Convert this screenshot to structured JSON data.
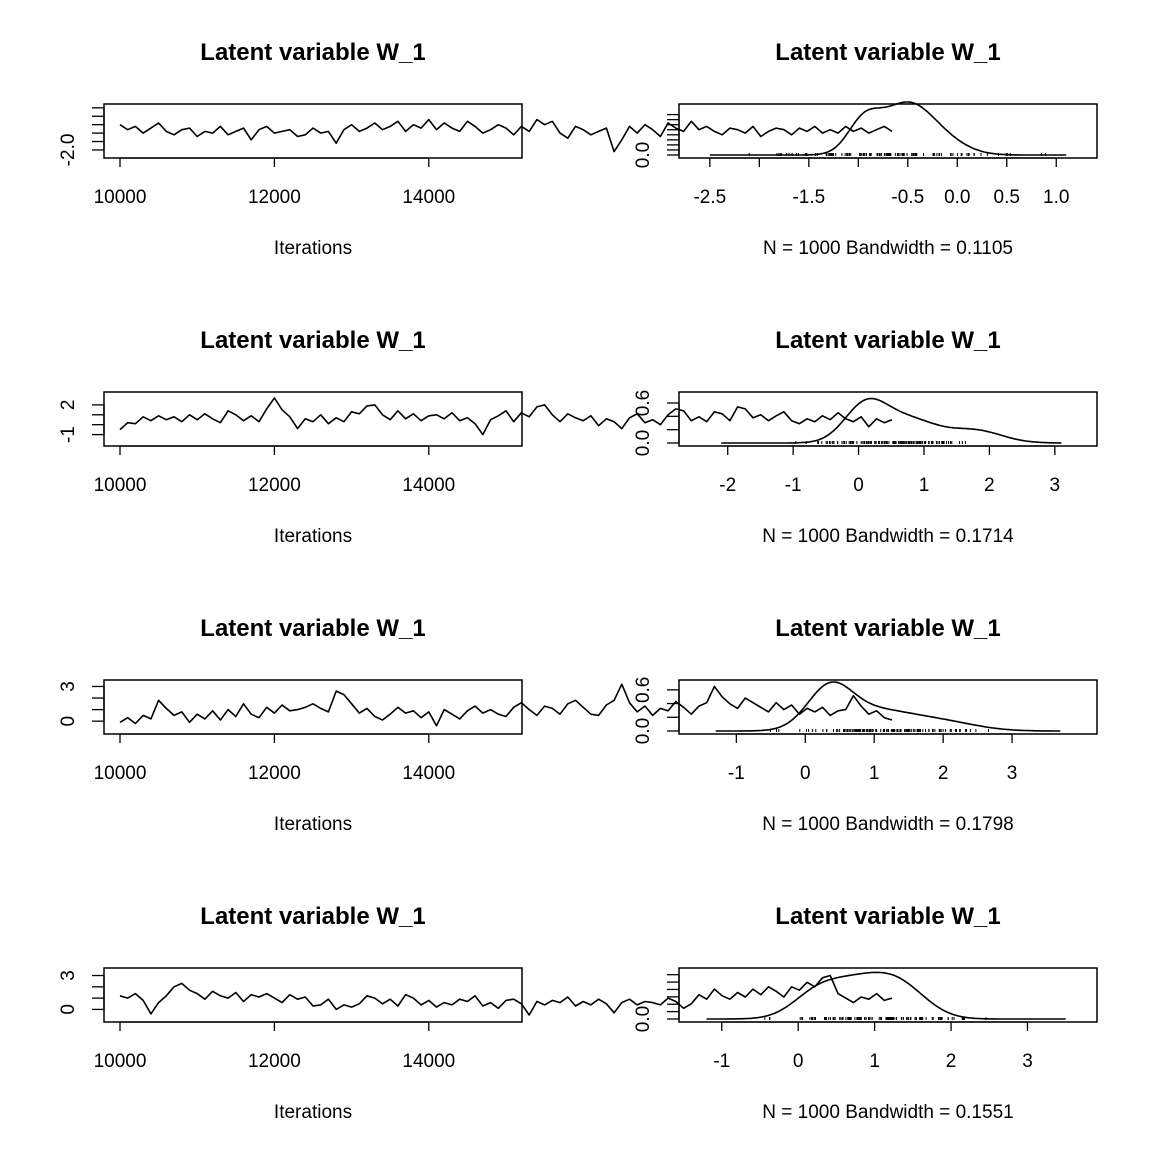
{
  "figure": {
    "background": "#ffffff",
    "line_color": "#000000"
  },
  "chart_data": [
    {
      "type": "line",
      "kind": "trace",
      "title": "Latent variable W_1",
      "xlabel": "Iterations",
      "xlim": [
        10000,
        15000
      ],
      "ylim": [
        -2.3,
        0.55
      ],
      "xticks": [
        10000,
        12000,
        14000
      ],
      "xtick_labels": [
        "10000",
        "12000",
        "14000"
      ],
      "yticks": [
        -2.0,
        -1.5,
        -1.0,
        -0.5,
        0.0,
        0.5
      ],
      "ytick_labels": [
        "-2.0",
        "",
        "",
        "",
        "",
        ""
      ],
      "series": [
        {
          "x_start": 10000,
          "x_step": 100,
          "values": [
            -0.5,
            -0.8,
            -0.6,
            -1.0,
            -0.7,
            -0.4,
            -0.9,
            -1.1,
            -0.8,
            -0.7,
            -1.2,
            -0.9,
            -1.0,
            -0.6,
            -1.1,
            -0.9,
            -0.7,
            -1.4,
            -0.8,
            -0.6,
            -1.0,
            -0.9,
            -0.8,
            -1.2,
            -1.1,
            -0.7,
            -1.0,
            -0.9,
            -1.6,
            -0.8,
            -0.5,
            -0.9,
            -0.7,
            -0.4,
            -0.8,
            -0.6,
            -0.3,
            -0.9,
            -0.5,
            -0.7,
            -0.2,
            -0.8,
            -0.4,
            -0.7,
            -0.9,
            -0.3,
            -0.6,
            -1.0,
            -0.8,
            -0.5,
            -0.7,
            -1.1,
            -0.6,
            -0.9,
            -0.2,
            -0.5,
            -0.3,
            -1.0,
            -1.3,
            -0.6,
            -0.8,
            -1.1,
            -0.9,
            -0.7,
            -2.1,
            -1.4,
            -0.6,
            -1.0,
            -0.5,
            -0.8,
            -1.2,
            -0.4,
            -0.7,
            -0.9,
            -0.3,
            -0.8,
            -0.6,
            -0.9,
            -1.1,
            -0.7,
            -0.8,
            -1.0,
            -0.6,
            -1.2,
            -0.9,
            -0.7,
            -0.8,
            -1.1,
            -0.7,
            -0.9,
            -0.6,
            -1.0,
            -0.8,
            -1.0,
            -0.6,
            -0.9,
            -0.7,
            -1.0,
            -0.8,
            -0.6,
            -0.9
          ]
        }
      ]
    },
    {
      "type": "line",
      "kind": "density",
      "title": "Latent variable W_1",
      "xlabel": "N = 1000   Bandwidth = 0.1105",
      "xlim": [
        -2.65,
        1.25
      ],
      "ylim": [
        0,
        0.95
      ],
      "xticks": [
        -2.5,
        -2.0,
        -1.5,
        -1.0,
        -0.5,
        0.0,
        0.5,
        1.0
      ],
      "xtick_labels": [
        "-2.5",
        "",
        "-1.5",
        "",
        "-0.5",
        "0.0",
        "0.5",
        "1.0"
      ],
      "yticks": [
        0.0,
        0.1,
        0.2,
        0.3,
        0.4,
        0.5,
        0.6,
        0.7,
        0.8
      ],
      "ytick_labels": [
        "0.0",
        "",
        "",
        "",
        "",
        "",
        "",
        "",
        ""
      ],
      "components": [
        [
          0.72,
          -0.5,
          0.28
        ],
        [
          0.22,
          -0.95,
          0.16
        ],
        [
          0.06,
          -0.05,
          0.22
        ]
      ],
      "range": [
        -2.5,
        1.1
      ],
      "rug": {
        "from": -2.3,
        "to": 1.0,
        "count": 120
      }
    },
    {
      "type": "line",
      "kind": "trace",
      "title": "Latent variable W_1",
      "xlabel": "Iterations",
      "xlim": [
        10000,
        15000
      ],
      "ylim": [
        -1.85,
        3.0
      ],
      "xticks": [
        10000,
        12000,
        14000
      ],
      "xtick_labels": [
        "10000",
        "12000",
        "14000"
      ],
      "yticks": [
        -1,
        0,
        1,
        2
      ],
      "ytick_labels": [
        "-1",
        "",
        "",
        "2"
      ],
      "series": [
        {
          "x_start": 10000,
          "x_step": 100,
          "values": [
            -0.5,
            0.2,
            0.1,
            0.8,
            0.4,
            0.9,
            0.5,
            0.8,
            0.3,
            1.0,
            0.5,
            1.1,
            0.6,
            0.2,
            1.4,
            1.0,
            0.4,
            0.9,
            0.3,
            1.6,
            2.7,
            1.5,
            0.8,
            -0.4,
            0.6,
            0.3,
            1.0,
            0.1,
            0.7,
            0.3,
            1.3,
            1.1,
            1.9,
            2.0,
            1.0,
            0.5,
            1.4,
            0.6,
            1.1,
            0.4,
            0.9,
            1.0,
            0.6,
            1.2,
            0.4,
            0.7,
            0.1,
            -1.0,
            0.5,
            0.9,
            1.4,
            0.3,
            1.2,
            0.8,
            1.8,
            2.0,
            1.0,
            0.3,
            1.1,
            0.7,
            0.4,
            0.9,
            -0.1,
            0.6,
            0.3,
            -0.4,
            0.7,
            1.1,
            0.2,
            0.5,
            0.0,
            1.0,
            1.6,
            1.4,
            0.4,
            0.8,
            0.3,
            1.3,
            1.1,
            0.4,
            1.8,
            1.6,
            0.7,
            1.0,
            0.4,
            0.9,
            1.3,
            0.4,
            0.1,
            0.6,
            0.3,
            0.9,
            0.5,
            1.2,
            0.6,
            0.3,
            0.8,
            -0.2,
            0.6,
            0.2,
            0.5
          ]
        }
      ]
    },
    {
      "type": "line",
      "kind": "density",
      "title": "Latent variable W_1",
      "xlabel": "N = 1000   Bandwidth = 0.1714",
      "xlim": [
        -2.5,
        3.4
      ],
      "ylim": [
        0,
        0.72
      ],
      "xticks": [
        -2,
        -1,
        0,
        1,
        2,
        3
      ],
      "xtick_labels": [
        "-2",
        "-1",
        "0",
        "1",
        "2",
        "3"
      ],
      "yticks": [
        0.0,
        0.2,
        0.4,
        0.6
      ],
      "ytick_labels": [
        "0.0",
        "",
        "",
        "0.6"
      ],
      "components": [
        [
          0.42,
          0.1,
          0.32
        ],
        [
          0.4,
          0.75,
          0.45
        ],
        [
          0.18,
          1.8,
          0.4
        ]
      ],
      "range": [
        -2.1,
        3.1
      ],
      "rug": {
        "from": -1.4,
        "to": 2.4,
        "count": 120
      }
    },
    {
      "type": "line",
      "kind": "trace",
      "title": "Latent variable W_1",
      "xlabel": "Iterations",
      "xlim": [
        10000,
        15000
      ],
      "ylim": [
        -0.85,
        3.3
      ],
      "xticks": [
        10000,
        12000,
        14000
      ],
      "xtick_labels": [
        "10000",
        "12000",
        "14000"
      ],
      "yticks": [
        0,
        1,
        2,
        3
      ],
      "ytick_labels": [
        "0",
        "",
        "",
        "3"
      ],
      "series": [
        {
          "x_start": 10000,
          "x_step": 100,
          "values": [
            -0.1,
            0.3,
            -0.2,
            0.5,
            0.2,
            1.8,
            1.1,
            0.5,
            0.8,
            -0.1,
            0.6,
            0.2,
            0.9,
            0.1,
            1.0,
            0.4,
            1.5,
            0.6,
            0.3,
            1.2,
            0.7,
            1.4,
            0.9,
            1.0,
            1.2,
            1.5,
            1.1,
            0.8,
            2.6,
            2.3,
            1.5,
            0.7,
            1.1,
            0.4,
            0.1,
            0.6,
            1.2,
            0.7,
            0.9,
            0.3,
            0.8,
            -0.4,
            1.0,
            0.6,
            0.2,
            0.9,
            1.3,
            0.7,
            1.0,
            0.6,
            0.4,
            1.2,
            1.6,
            1.0,
            0.5,
            1.3,
            1.1,
            0.6,
            1.5,
            1.8,
            1.2,
            0.6,
            0.5,
            1.4,
            1.8,
            3.2,
            1.6,
            0.8,
            1.3,
            0.5,
            1.1,
            0.9,
            1.7,
            1.2,
            0.6,
            1.3,
            1.6,
            3.0,
            2.1,
            1.5,
            1.1,
            2.0,
            1.6,
            1.2,
            0.8,
            1.6,
            1.0,
            1.4,
            0.6,
            1.1,
            0.8,
            1.2,
            0.5,
            0.9,
            1.0,
            2.2,
            1.3,
            0.6,
            0.9,
            0.3,
            0.1
          ]
        }
      ]
    },
    {
      "type": "line",
      "kind": "density",
      "title": "Latent variable W_1",
      "xlabel": "N = 1000   Bandwidth = 0.1798",
      "xlim": [
        -1.6,
        4.0
      ],
      "ylim": [
        0,
        0.7
      ],
      "xticks": [
        -1,
        0,
        1,
        2,
        3
      ],
      "xtick_labels": [
        "-1",
        "0",
        "1",
        "2",
        "3"
      ],
      "yticks": [
        0.0,
        0.2,
        0.4,
        0.6
      ],
      "ytick_labels": [
        "0.0",
        "",
        "",
        "0.6"
      ],
      "components": [
        [
          0.45,
          0.35,
          0.32
        ],
        [
          0.4,
          1.0,
          0.55
        ],
        [
          0.15,
          2.0,
          0.5
        ]
      ],
      "range": [
        -1.3,
        3.7
      ],
      "rug": {
        "from": -0.8,
        "to": 3.0,
        "count": 120
      }
    },
    {
      "type": "line",
      "kind": "trace",
      "title": "Latent variable W_1",
      "xlabel": "Iterations",
      "xlim": [
        10000,
        15000
      ],
      "ylim": [
        -0.85,
        3.4
      ],
      "xticks": [
        10000,
        12000,
        14000
      ],
      "xtick_labels": [
        "10000",
        "12000",
        "14000"
      ],
      "yticks": [
        0,
        1,
        2,
        3
      ],
      "ytick_labels": [
        "0",
        "",
        "",
        "3"
      ],
      "series": [
        {
          "x_start": 10000,
          "x_step": 100,
          "values": [
            1.2,
            1.0,
            1.4,
            0.8,
            -0.4,
            0.6,
            1.2,
            2.0,
            2.3,
            1.7,
            1.4,
            0.9,
            1.6,
            1.2,
            1.0,
            1.5,
            0.7,
            1.3,
            1.1,
            1.4,
            1.0,
            0.6,
            1.3,
            0.9,
            1.1,
            0.3,
            0.4,
            0.9,
            0.0,
            0.4,
            0.2,
            0.5,
            1.2,
            1.0,
            0.5,
            0.9,
            0.3,
            1.3,
            1.0,
            0.4,
            0.8,
            0.2,
            0.6,
            0.4,
            0.9,
            0.7,
            1.2,
            0.3,
            0.6,
            0.1,
            0.8,
            0.9,
            0.5,
            -0.5,
            0.7,
            0.4,
            0.8,
            0.6,
            1.1,
            0.3,
            0.7,
            0.4,
            0.9,
            0.5,
            -0.3,
            0.6,
            0.9,
            0.4,
            0.7,
            0.6,
            0.4,
            1.0,
            0.7,
            0.1,
            0.5,
            1.3,
            0.9,
            1.8,
            1.2,
            0.9,
            1.5,
            1.1,
            1.8,
            1.3,
            2.0,
            1.6,
            1.1,
            2.0,
            1.7,
            2.4,
            2.0,
            2.8,
            3.0,
            1.4,
            1.0,
            0.6,
            1.1,
            0.9,
            1.4,
            0.8,
            1.0
          ]
        }
      ]
    },
    {
      "type": "line",
      "kind": "density",
      "title": "Latent variable W_1",
      "xlabel": "N = 1000   Bandwidth = 0.1551",
      "xlim": [
        -1.35,
        3.7
      ],
      "ylim": [
        0,
        0.65
      ],
      "xticks": [
        -1,
        0,
        1,
        2,
        3
      ],
      "xtick_labels": [
        "-1",
        "0",
        "1",
        "2",
        "3"
      ],
      "yticks": [
        0.0,
        0.1,
        0.2,
        0.3,
        0.4,
        0.5,
        0.6
      ],
      "ytick_labels": [
        "0.0",
        "",
        "",
        "",
        "",
        "",
        ""
      ],
      "components": [
        [
          0.55,
          0.75,
          0.45
        ],
        [
          0.3,
          1.35,
          0.35
        ],
        [
          0.15,
          0.2,
          0.3
        ]
      ],
      "range": [
        -1.2,
        3.5
      ],
      "rug": {
        "from": -0.7,
        "to": 2.9,
        "count": 120
      }
    }
  ]
}
